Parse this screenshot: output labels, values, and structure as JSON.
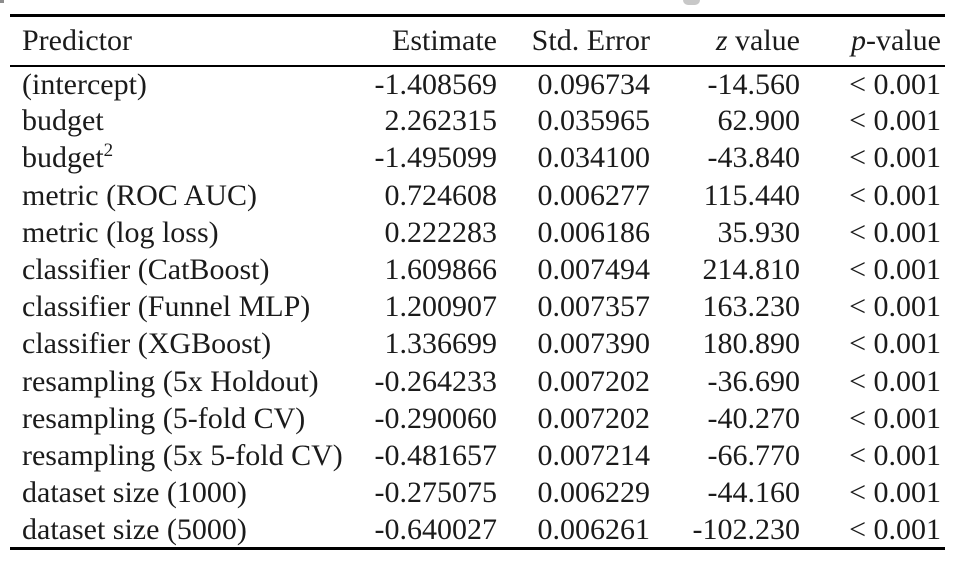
{
  "page": {
    "background_color": "#ffffff",
    "text_color": "#1b1b1b",
    "rule_color": "#000000"
  },
  "table": {
    "header": {
      "predictor": "Predictor",
      "estimate": "Estimate",
      "std_error": "Std. Error",
      "z_symbol": "z",
      "z_rest": " value",
      "p_symbol": "p",
      "p_rest": "-value"
    },
    "rows": [
      {
        "predictor": "(intercept)",
        "estimate": "-1.408569",
        "std_error": "0.096734",
        "z_value": "-14.560",
        "p_value": "< 0.001"
      },
      {
        "predictor": "budget",
        "estimate": "2.262315",
        "std_error": "0.035965",
        "z_value": "62.900",
        "p_value": "< 0.001"
      },
      {
        "predictor": "budget",
        "sup": "2",
        "estimate": "-1.495099",
        "std_error": "0.034100",
        "z_value": "-43.840",
        "p_value": "< 0.001"
      },
      {
        "predictor": "metric (ROC AUC)",
        "estimate": "0.724608",
        "std_error": "0.006277",
        "z_value": "115.440",
        "p_value": "< 0.001"
      },
      {
        "predictor": "metric (log loss)",
        "estimate": "0.222283",
        "std_error": "0.006186",
        "z_value": "35.930",
        "p_value": "< 0.001"
      },
      {
        "predictor": "classifier (CatBoost)",
        "estimate": "1.609866",
        "std_error": "0.007494",
        "z_value": "214.810",
        "p_value": "< 0.001"
      },
      {
        "predictor": "classifier (Funnel MLP)",
        "estimate": "1.200907",
        "std_error": "0.007357",
        "z_value": "163.230",
        "p_value": "< 0.001"
      },
      {
        "predictor": "classifier (XGBoost)",
        "estimate": "1.336699",
        "std_error": "0.007390",
        "z_value": "180.890",
        "p_value": "< 0.001"
      },
      {
        "predictor": "resampling (5x Holdout)",
        "estimate": "-0.264233",
        "std_error": "0.007202",
        "z_value": "-36.690",
        "p_value": "< 0.001"
      },
      {
        "predictor": "resampling (5-fold CV)",
        "estimate": "-0.290060",
        "std_error": "0.007202",
        "z_value": "-40.270",
        "p_value": "< 0.001"
      },
      {
        "predictor": "resampling (5x 5-fold CV)",
        "estimate": "-0.481657",
        "std_error": "0.007214",
        "z_value": "-66.770",
        "p_value": "< 0.001"
      },
      {
        "predictor": "dataset size (1000)",
        "estimate": "-0.275075",
        "std_error": "0.006229",
        "z_value": "-44.160",
        "p_value": "< 0.001"
      },
      {
        "predictor": "dataset size (5000)",
        "estimate": "-0.640027",
        "std_error": "0.006261",
        "z_value": "-102.230",
        "p_value": "< 0.001"
      }
    ]
  }
}
